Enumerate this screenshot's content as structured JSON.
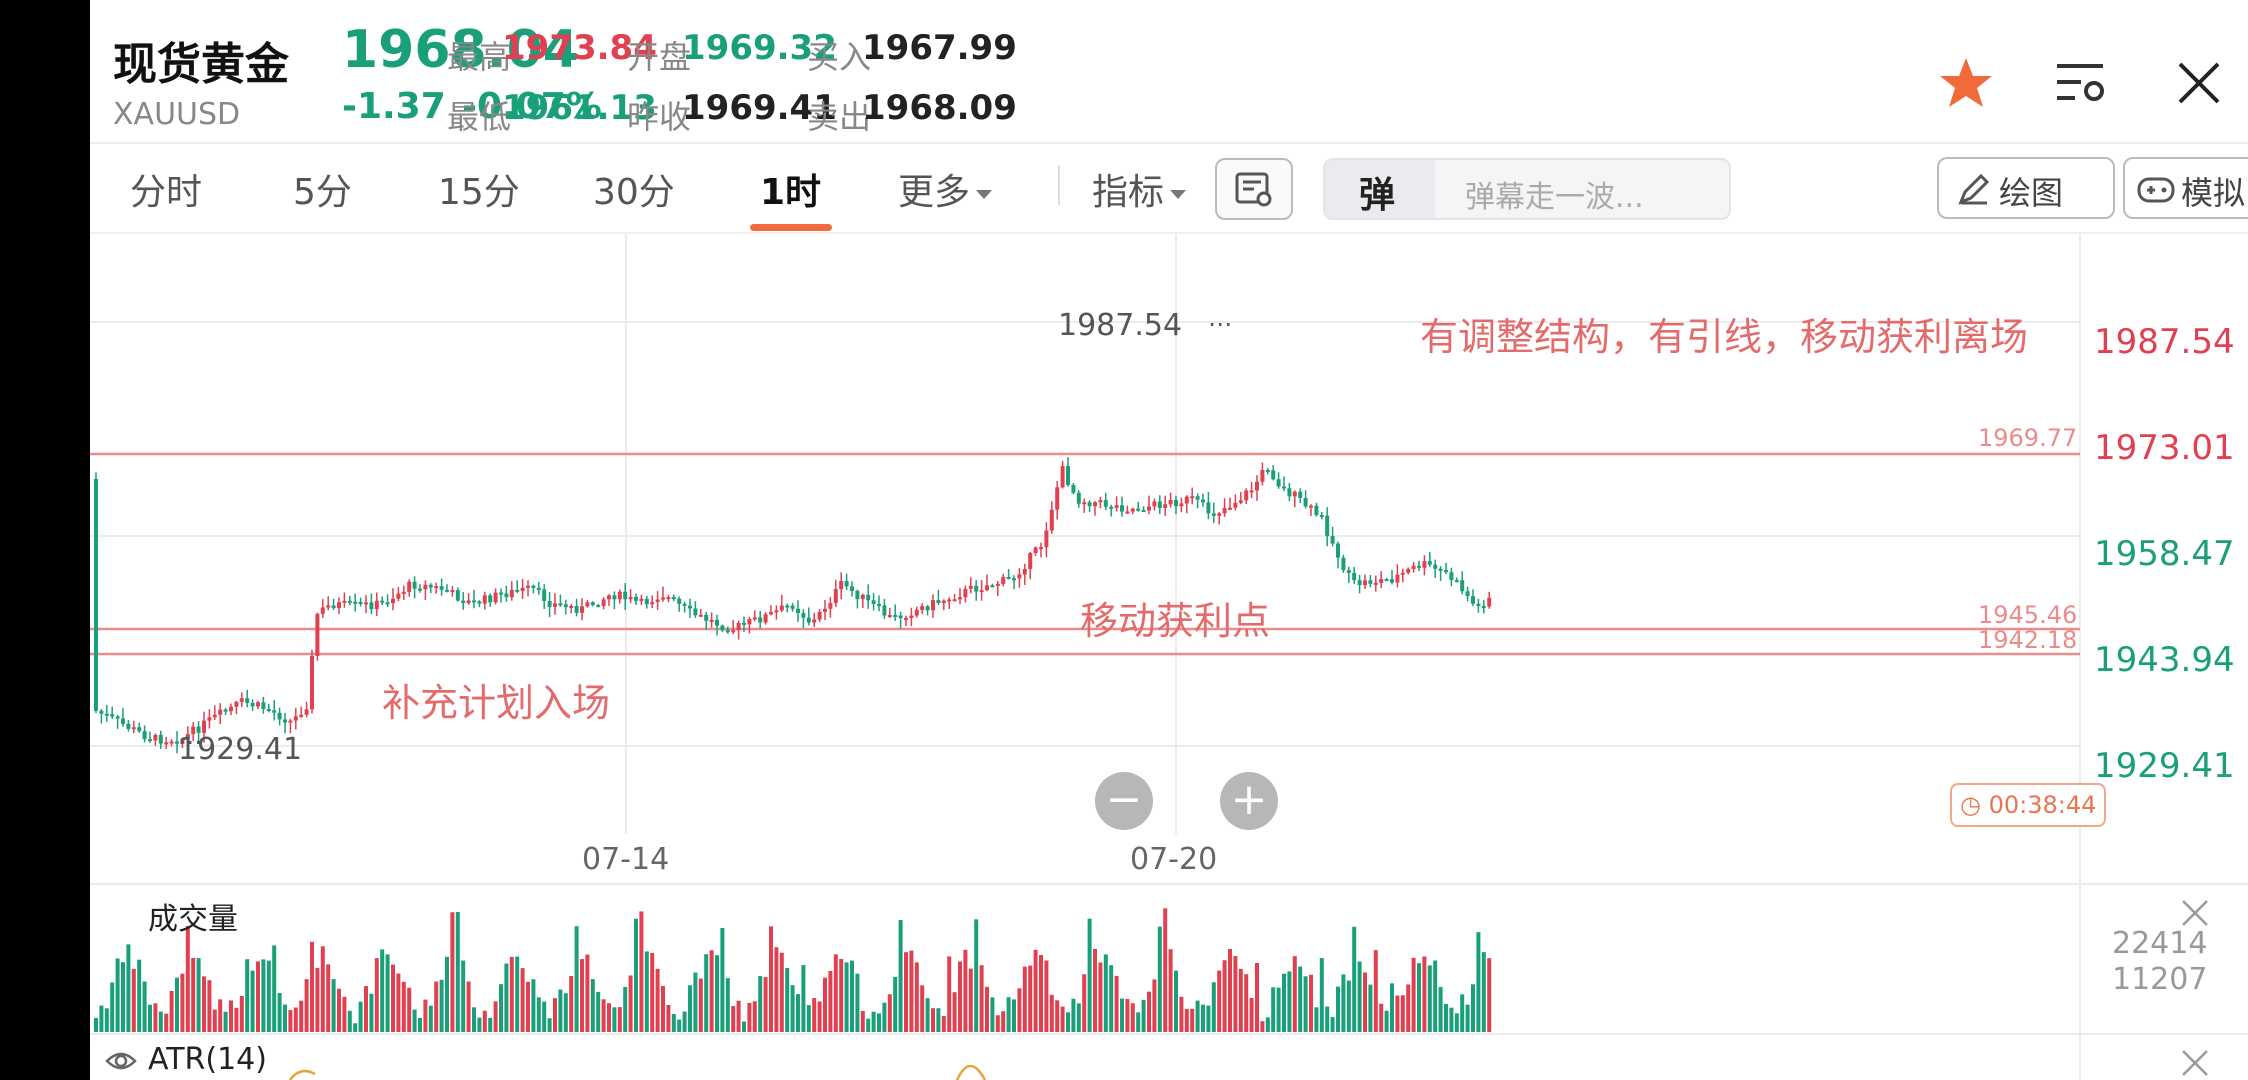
{
  "header": {
    "title": "现货黄金",
    "symbol": "XAUUSD",
    "price": "1968.04",
    "change": "-1.37",
    "change_pct": "-0.07%",
    "high_label": "最高",
    "high": "1973.84",
    "low_label": "最低",
    "low": "1961.13",
    "open_label": "开盘",
    "open": "1969.32",
    "prev_label": "昨收",
    "prev": "1969.41",
    "buy_label": "买入",
    "buy": "1967.99",
    "sell_label": "卖出",
    "sell": "1968.09"
  },
  "tabs": {
    "t1": "分时",
    "t2": "5分",
    "t3": "15分",
    "t4": "30分",
    "t5": "1时",
    "more": "更多",
    "indicator": "指标",
    "danmu_icon": "弹",
    "danmu_placeholder": "弹幕走一波...",
    "draw": "绘图",
    "sim": "模拟"
  },
  "chart": {
    "price_labels": [
      "1987.54",
      "1973.01",
      "1958.47",
      "1943.94",
      "1929.41"
    ],
    "high_marker": "1987.54",
    "low_marker": "1929.41",
    "line_levels": [
      "1969.77",
      "1945.46",
      "1942.18"
    ],
    "annotation_top": "有调整结构，有引线，移动获利离场",
    "annotation_mid": "移动获利点",
    "annotation_left": "补充计划入场",
    "date_labels": [
      "07-14",
      "07-20"
    ],
    "timer": "00:38:44",
    "zoom_out": "−",
    "zoom_in": "+"
  },
  "volume": {
    "title": "成交量",
    "max": "22414",
    "mid": "11207"
  },
  "atr": {
    "title": "ATR(14)"
  },
  "colors": {
    "up": "#e04050",
    "down": "#19a07a",
    "accent": "#ef6a3d",
    "line": "#ec8b8b"
  },
  "icons": [
    "star-icon",
    "list-settings-icon",
    "close-icon",
    "pencil-icon",
    "gamepad-icon",
    "chart-settings-icon",
    "clock-icon",
    "eye-icon"
  ]
}
